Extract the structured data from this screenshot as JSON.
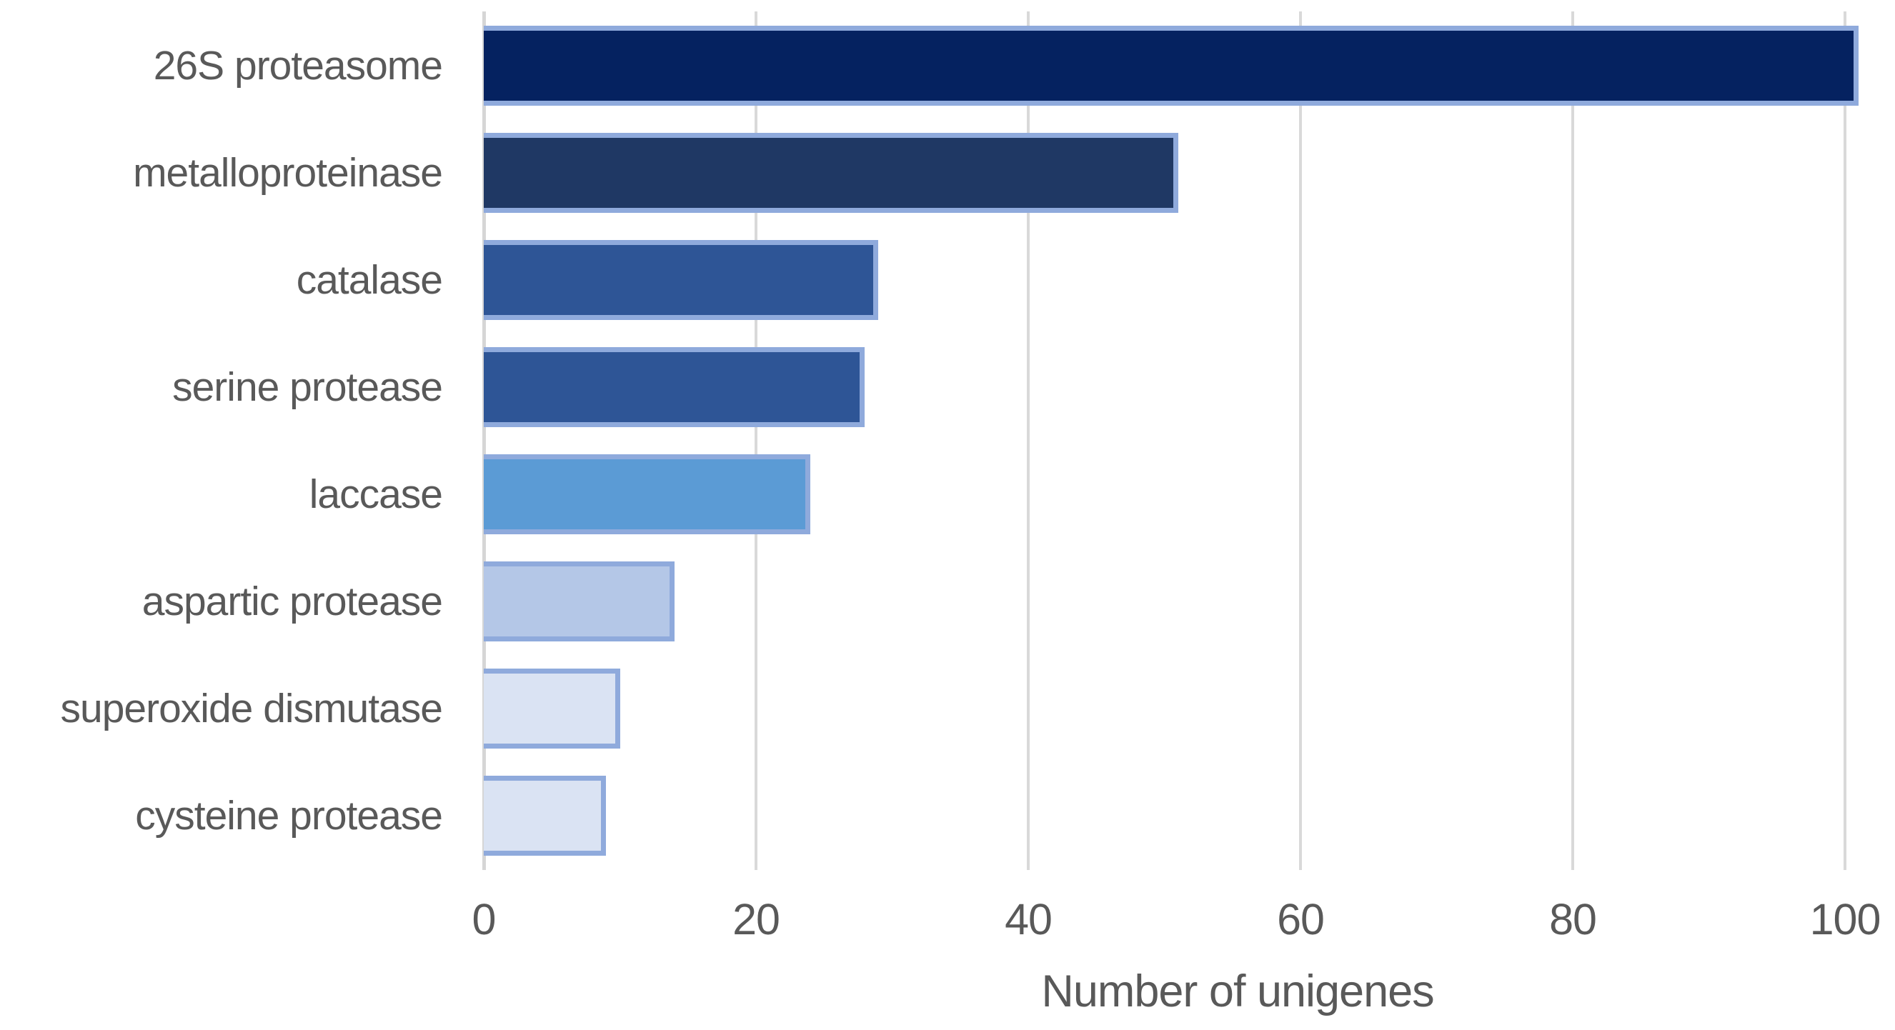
{
  "chart_data": {
    "type": "bar",
    "orientation": "horizontal",
    "title": "",
    "xlabel": "Number of unigenes",
    "ylabel": "",
    "categories": [
      "26S proteasome",
      "metalloproteinase",
      "catalase",
      "serine protease",
      "laccase",
      "aspartic protease",
      "superoxide dismutase",
      "cysteine protease"
    ],
    "values": [
      101,
      51,
      29,
      28,
      24,
      14,
      10,
      9
    ],
    "xlim": [
      0,
      100
    ],
    "x_ticks": [
      0,
      20,
      40,
      60,
      80,
      100
    ],
    "grid": "vertical-gridlines-on",
    "legend": "none",
    "colors": {
      "bar_fills": [
        "#052260",
        "#1F3864",
        "#2E5596",
        "#2E5596",
        "#5B9BD5",
        "#B4C7E7",
        "#DAE3F3",
        "#DAE3F3"
      ],
      "bar_border": "#8FAADC",
      "gridline": "#D9D9D9",
      "axis_line": "#D6D6D6",
      "text": "#595959",
      "background": "#FFFFFF"
    }
  }
}
